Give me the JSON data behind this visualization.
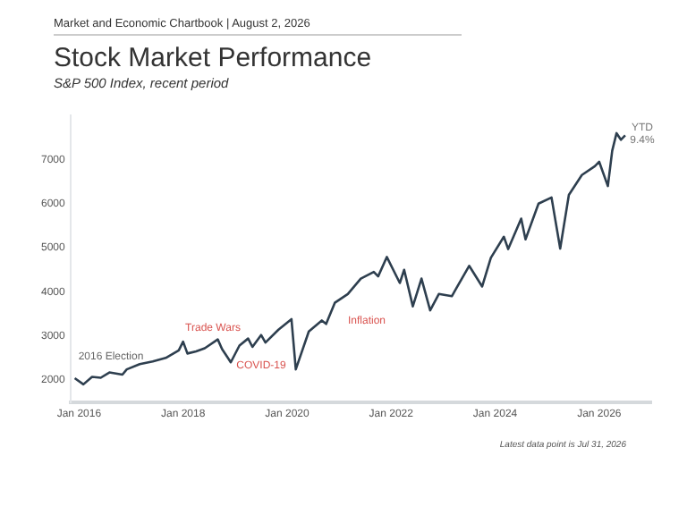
{
  "chart_data": {
    "type": "line",
    "title": "Stock Market Performance",
    "subtitle": "S&P 500 Index, recent period",
    "annotations": [
      "Market and Economic Chartbook | August 2, 2026",
      "Latest data point is Jul 31, 2026",
      "2016 Election",
      "Trade Wars",
      "COVID-19",
      "Inflation",
      "YTD",
      "9.4%"
    ],
    "x": [
      "2015-12",
      "2016-02",
      "2016-04",
      "2016-06",
      "2016-08",
      "2016-11",
      "2016-12",
      "2017-03",
      "2017-06",
      "2017-09",
      "2017-12",
      "2018-01",
      "2018-02",
      "2018-04",
      "2018-06",
      "2018-09",
      "2018-10",
      "2018-12",
      "2019-02",
      "2019-04",
      "2019-05",
      "2019-07",
      "2019-08",
      "2019-11",
      "2020-02",
      "2020-03",
      "2020-06",
      "2020-09",
      "2020-10",
      "2020-12",
      "2021-03",
      "2021-06",
      "2021-09",
      "2021-10",
      "2021-12",
      "2022-03",
      "2022-04",
      "2022-06",
      "2022-08",
      "2022-10",
      "2022-12",
      "2023-03",
      "2023-07",
      "2023-10",
      "2023-12",
      "2024-03",
      "2024-04",
      "2024-07",
      "2024-08",
      "2024-11",
      "2025-02",
      "2025-04",
      "2025-06",
      "2025-09",
      "2025-12",
      "2026-01",
      "2026-03",
      "2026-04",
      "2026-05",
      "2026-06",
      "2026-07"
    ],
    "series": [
      {
        "color": "#2e3f4f",
        "values": [
          2040,
          1900,
          2070,
          2050,
          2170,
          2120,
          2240,
          2360,
          2420,
          2500,
          2670,
          2870,
          2600,
          2650,
          2720,
          2920,
          2700,
          2400,
          2780,
          2940,
          2750,
          3020,
          2850,
          3140,
          3380,
          2240,
          3100,
          3350,
          3270,
          3750,
          3950,
          4300,
          4450,
          4350,
          4790,
          4200,
          4500,
          3670,
          4300,
          3580,
          3950,
          3900,
          4590,
          4120,
          4770,
          5250,
          4970,
          5660,
          5190,
          6000,
          6140,
          4980,
          6200,
          6650,
          6850,
          6950,
          6400,
          7200,
          7600,
          7450,
          7550
        ]
      }
    ],
    "xlim": [
      "2015-11",
      "2027-01"
    ],
    "xticks": [
      {
        "value": "2016-01",
        "label": "Jan 2016"
      },
      {
        "value": "2018-01",
        "label": "Jan 2018"
      },
      {
        "value": "2020-01",
        "label": "Jan 2020"
      },
      {
        "value": "2022-01",
        "label": "Jan 2022"
      },
      {
        "value": "2024-01",
        "label": "Jan 2024"
      },
      {
        "value": "2026-01",
        "label": "Jan 2026"
      }
    ],
    "ylim": [
      1500,
      8000
    ],
    "yticks": [
      2000,
      3000,
      4000,
      5000,
      6000,
      7000
    ],
    "grid": false,
    "legend": false,
    "marker": "none",
    "line_style": "solid"
  }
}
